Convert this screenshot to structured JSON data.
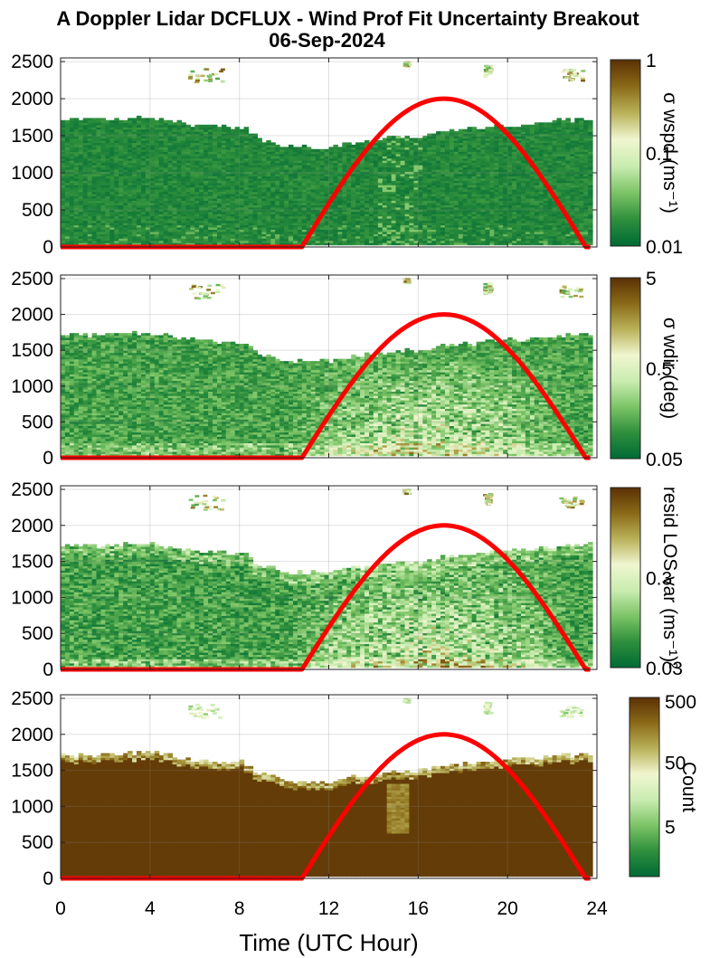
{
  "title_line1": "A Doppler Lidar DCFLUX - Wind Prof Fit Uncertainty Breakout",
  "title_line2": "06-Sep-2024",
  "xlabel": "Time (UTC Hour)",
  "x_ticks": [
    "0",
    "4",
    "8",
    "12",
    "16",
    "20",
    "24"
  ],
  "y_ticks": [
    "0",
    "500",
    "1000",
    "1500",
    "2000",
    "2500"
  ],
  "colors": {
    "curve": "#ff0000",
    "cmap": [
      "#006a35",
      "#2e8f3c",
      "#7cc466",
      "#c9ecb0",
      "#f0f6d0",
      "#b9b25a",
      "#8a6a18",
      "#5a3004"
    ]
  },
  "chart_data": [
    {
      "type": "heatmap",
      "xlim": [
        0,
        24
      ],
      "ylim": [
        0,
        2550
      ],
      "colorbar": {
        "label": "σ wspd (ms⁻¹)",
        "scale": "log",
        "ticks": [
          "1",
          "0.1",
          "0.01"
        ]
      },
      "top_boundary": [
        [
          0,
          1700
        ],
        [
          2,
          1710
        ],
        [
          4,
          1730
        ],
        [
          6,
          1620
        ],
        [
          8,
          1600
        ],
        [
          9,
          1420
        ],
        [
          10,
          1340
        ],
        [
          11,
          1330
        ],
        [
          12,
          1330
        ],
        [
          13,
          1400
        ],
        [
          14,
          1420
        ],
        [
          15,
          1480
        ],
        [
          16,
          1480
        ],
        [
          17,
          1550
        ],
        [
          18,
          1570
        ],
        [
          19,
          1610
        ],
        [
          20,
          1630
        ],
        [
          21,
          1650
        ],
        [
          22,
          1690
        ],
        [
          23,
          1700
        ],
        [
          23.6,
          1720
        ]
      ],
      "sun_elevation_curve": {
        "start_hour": 10.8,
        "peak_hour": 17.1,
        "end_hour": 23.5,
        "peak": 2000
      }
    },
    {
      "type": "heatmap",
      "xlim": [
        0,
        24
      ],
      "ylim": [
        0,
        2550
      ],
      "colorbar": {
        "label": "σ wdir (deg)",
        "scale": "log",
        "ticks": [
          "5",
          "0.5",
          "0.05"
        ]
      },
      "top_boundary": [
        [
          0,
          1700
        ],
        [
          2,
          1710
        ],
        [
          4,
          1730
        ],
        [
          6,
          1620
        ],
        [
          8,
          1600
        ],
        [
          9,
          1420
        ],
        [
          10,
          1340
        ],
        [
          11,
          1330
        ],
        [
          12,
          1330
        ],
        [
          13,
          1400
        ],
        [
          14,
          1420
        ],
        [
          15,
          1480
        ],
        [
          16,
          1480
        ],
        [
          17,
          1550
        ],
        [
          18,
          1570
        ],
        [
          19,
          1610
        ],
        [
          20,
          1630
        ],
        [
          21,
          1650
        ],
        [
          22,
          1690
        ],
        [
          23,
          1700
        ],
        [
          23.6,
          1720
        ]
      ],
      "sun_elevation_curve": {
        "start_hour": 10.8,
        "peak_hour": 17.1,
        "end_hour": 23.5,
        "peak": 2000
      }
    },
    {
      "type": "heatmap",
      "xlim": [
        0,
        24
      ],
      "ylim": [
        0,
        2550
      ],
      "colorbar": {
        "label": "resid LOS var (ms⁻¹)²",
        "scale": "log",
        "ticks": [
          "0.3",
          "0.03"
        ]
      },
      "top_boundary": [
        [
          0,
          1700
        ],
        [
          2,
          1710
        ],
        [
          4,
          1730
        ],
        [
          6,
          1620
        ],
        [
          8,
          1600
        ],
        [
          9,
          1420
        ],
        [
          10,
          1340
        ],
        [
          11,
          1330
        ],
        [
          12,
          1330
        ],
        [
          13,
          1400
        ],
        [
          14,
          1420
        ],
        [
          15,
          1480
        ],
        [
          16,
          1480
        ],
        [
          17,
          1550
        ],
        [
          18,
          1570
        ],
        [
          19,
          1610
        ],
        [
          20,
          1630
        ],
        [
          21,
          1650
        ],
        [
          22,
          1690
        ],
        [
          23,
          1700
        ],
        [
          23.6,
          1720
        ]
      ],
      "sun_elevation_curve": {
        "start_hour": 10.8,
        "peak_hour": 17.1,
        "end_hour": 23.5,
        "peak": 2000
      }
    },
    {
      "type": "heatmap",
      "xlim": [
        0,
        24
      ],
      "ylim": [
        0,
        2550
      ],
      "colorbar": {
        "label": "Count",
        "scale": "log",
        "ticks": [
          "500",
          "50",
          "5"
        ]
      },
      "top_boundary": [
        [
          0,
          1700
        ],
        [
          2,
          1710
        ],
        [
          4,
          1730
        ],
        [
          6,
          1620
        ],
        [
          8,
          1600
        ],
        [
          9,
          1420
        ],
        [
          10,
          1340
        ],
        [
          11,
          1330
        ],
        [
          12,
          1330
        ],
        [
          13,
          1400
        ],
        [
          14,
          1420
        ],
        [
          15,
          1480
        ],
        [
          16,
          1480
        ],
        [
          17,
          1550
        ],
        [
          18,
          1570
        ],
        [
          19,
          1610
        ],
        [
          20,
          1630
        ],
        [
          21,
          1650
        ],
        [
          22,
          1690
        ],
        [
          23,
          1700
        ],
        [
          23.6,
          1720
        ]
      ],
      "sun_elevation_curve": {
        "start_hour": 10.8,
        "peak_hour": 17.1,
        "end_hour": 23.5,
        "peak": 2000
      }
    }
  ]
}
